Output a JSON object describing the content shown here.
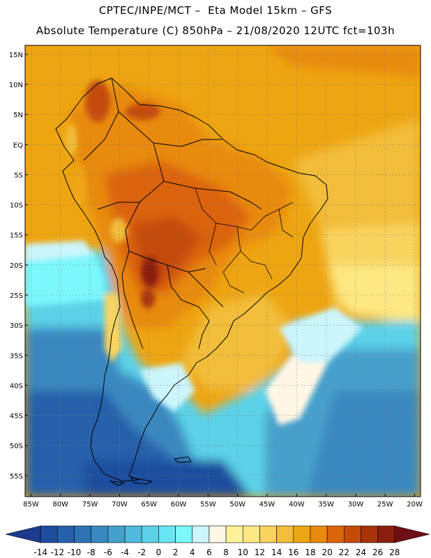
{
  "header": {
    "title_line1": "CPTEC/INPE/MCT –  Eta Model 15km – GFS",
    "title_line2": "Absolute Temperature (C) 850hPa – 21/08/2020 12UTC fct=103h"
  },
  "map": {
    "lon_min": -86,
    "lon_max": -19,
    "lat_min": -58.5,
    "lat_max": 16.5,
    "lat_ticks": [
      {
        "value": 15,
        "label": "15N"
      },
      {
        "value": 10,
        "label": "10N"
      },
      {
        "value": 5,
        "label": "5N"
      },
      {
        "value": 0,
        "label": "EQ"
      },
      {
        "value": -5,
        "label": "5S"
      },
      {
        "value": -10,
        "label": "10S"
      },
      {
        "value": -15,
        "label": "15S"
      },
      {
        "value": -20,
        "label": "20S"
      },
      {
        "value": -25,
        "label": "25S"
      },
      {
        "value": -30,
        "label": "30S"
      },
      {
        "value": -35,
        "label": "35S"
      },
      {
        "value": -40,
        "label": "40S"
      },
      {
        "value": -45,
        "label": "45S"
      },
      {
        "value": -50,
        "label": "50S"
      },
      {
        "value": -55,
        "label": "55S"
      }
    ],
    "lon_ticks": [
      {
        "value": -85,
        "label": "85W"
      },
      {
        "value": -80,
        "label": "80W"
      },
      {
        "value": -75,
        "label": "75W"
      },
      {
        "value": -70,
        "label": "70W"
      },
      {
        "value": -65,
        "label": "65W"
      },
      {
        "value": -60,
        "label": "60W"
      },
      {
        "value": -55,
        "label": "55W"
      },
      {
        "value": -50,
        "label": "50W"
      },
      {
        "value": -45,
        "label": "45W"
      },
      {
        "value": -40,
        "label": "40W"
      },
      {
        "value": -35,
        "label": "35W"
      },
      {
        "value": -30,
        "label": "30W"
      },
      {
        "value": -25,
        "label": "25W"
      },
      {
        "value": -20,
        "label": "20W"
      }
    ]
  },
  "colorbar": {
    "labels": [
      "-14",
      "-12",
      "-10",
      "-8",
      "-6",
      "-4",
      "-2",
      "0",
      "2",
      "4",
      "6",
      "8",
      "10",
      "12",
      "14",
      "16",
      "18",
      "20",
      "22",
      "24",
      "26",
      "28"
    ],
    "colors": [
      "#1a3b8f",
      "#1f4d9e",
      "#2660aa",
      "#2f73b5",
      "#3a88c0",
      "#46a0cc",
      "#4fbadb",
      "#5bd2e8",
      "#6ae6f2",
      "#7cf7fc",
      "#ccf5fb",
      "#fff7e6",
      "#fff29a",
      "#fde883",
      "#f9d35f",
      "#f2bd3a",
      "#eea512",
      "#e88a10",
      "#dc640a",
      "#c54b0a",
      "#a8340a",
      "#8a1f0e",
      "#6e0f16"
    ]
  }
}
